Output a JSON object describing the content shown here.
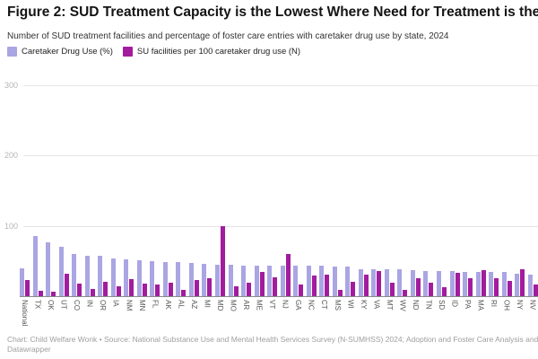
{
  "header": {
    "title": "Figure 2: SUD Treatment Capacity is the Lowest Where Need for Treatment is the Highest",
    "subtitle": "Number of SUD treatment facilities and percentage of foster care entries with caretaker drug use by state, 2024"
  },
  "legend": [
    {
      "label": "Caretaker Drug Use (%)",
      "color": "#aaa5e3"
    },
    {
      "label": "SU facilities per 100 caretaker drug use (N)",
      "color": "#a21c9e"
    }
  ],
  "chart_data": {
    "type": "bar",
    "title": "Figure 2: SUD Treatment Capacity is the Lowest Where Need for Treatment is the Highest",
    "subtitle": "Number of SUD treatment facilities and percentage of foster care entries with caretaker drug use by state, 2024",
    "categories": [
      "National",
      "TX",
      "OK",
      "UT",
      "CO",
      "IN",
      "OR",
      "IA",
      "NM",
      "MN",
      "FL",
      "AK",
      "AL",
      "AZ",
      "MI",
      "MD",
      "MO",
      "AR",
      "ME",
      "VT",
      "NJ",
      "GA",
      "NC",
      "CT",
      "MS",
      "WI",
      "KY",
      "VA",
      "MT",
      "WV",
      "ND",
      "TN",
      "SD",
      "ID",
      "PA",
      "MA",
      "RI",
      "OH",
      "NY",
      "NV"
    ],
    "series": [
      {
        "name": "Caretaker Drug Use (%)",
        "color": "#aaa5e3",
        "values": [
          39,
          85,
          77,
          70,
          60,
          58,
          57,
          53,
          52,
          51,
          50,
          49,
          48,
          47,
          46,
          45,
          45,
          44,
          44,
          44,
          44,
          43,
          43,
          43,
          42,
          42,
          38,
          38,
          38,
          38,
          37,
          36,
          36,
          36,
          35,
          35,
          35,
          34,
          32,
          31
        ]
      },
      {
        "name": "SU facilities per 100 caretaker drug use (N)",
        "color": "#a21c9e",
        "values": [
          23,
          8,
          6,
          32,
          18,
          10,
          20,
          14,
          24,
          18,
          16,
          19,
          9,
          23,
          26,
          99,
          14,
          19,
          34,
          27,
          60,
          16,
          29,
          31,
          9,
          21,
          30,
          36,
          19,
          9,
          25,
          19,
          13,
          33,
          26,
          37,
          26,
          22,
          38,
          16
        ]
      }
    ],
    "xlabel": "",
    "ylabel": "",
    "yticks": [
      100,
      200,
      300
    ],
    "ylim": [
      0,
      308
    ],
    "grid": true,
    "legend_position": "top-left"
  },
  "footer": {
    "line1": "Chart: Child Welfare Wonk • Source: National Substance Use and Mental Health Services Survey (N-SUMHSS) 2024; Adoption and Foster Care Analysis and Reporting",
    "line2": "Datawrapper"
  }
}
